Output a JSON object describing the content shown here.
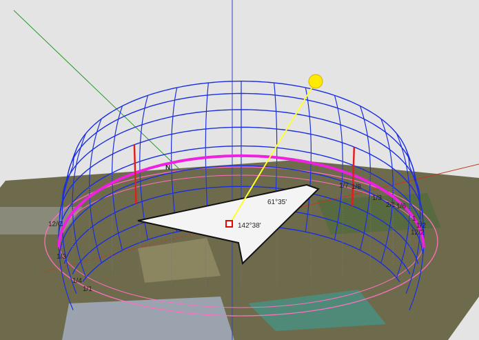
{
  "labels": {
    "north": "N",
    "altitude": "61°35'",
    "azimuth": "142°38'",
    "hour_labels": [
      "1/7",
      "1/8",
      "1/3",
      "2/1",
      "1/6",
      "1",
      "1/2",
      "12/2",
      "12/C",
      "1/3",
      "1/4",
      "1/1"
    ]
  }
}
